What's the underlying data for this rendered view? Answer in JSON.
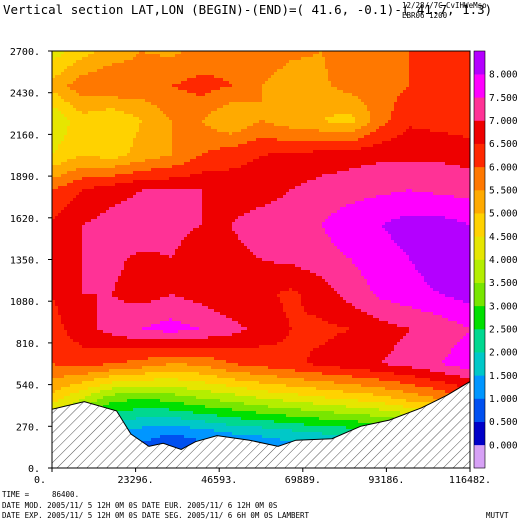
{
  "header": {
    "title": "Vertical section LAT,LON (BEGIN)-(END)=( 41.6, -0.1)-( 41.7,  1.3)",
    "stamp_line1": "12/28//7C",
    "stamp_line2": "CvIHWeMso",
    "stamp_line3": "EBR06 1200"
  },
  "footer": {
    "time_label": "TIME =",
    "time_value": "86400.",
    "line1": "DATE MOD. 2005/11/ 5   12H 0M 0S     DATE EUR. 2005/11/ 6   12H 0M 0S",
    "line2": "DATE EXP.  2005/11/ 5   12H 0M 0S     DATE SEG. 2005/11/ 6   6H 0M 0S     LAMBERT",
    "corner": "MUTVT"
  },
  "chart_data": {
    "type": "heatmap",
    "title": "",
    "xlabel": "",
    "ylabel": "",
    "xlim": [
      0,
      116482
    ],
    "ylim": [
      0,
      2700
    ],
    "x_ticks": [
      "0.",
      "23296.",
      "46593.",
      "69889.",
      "93186.",
      "116482."
    ],
    "y_ticks": [
      "0.",
      "270.",
      "540.",
      "810.",
      "1080.",
      "1350.",
      "1620.",
      "1890.",
      "2160.",
      "2430.",
      "2700."
    ],
    "colorbar": {
      "levels": [
        "0.000",
        "0.500",
        "1.000",
        "1.500",
        "2.000",
        "2.500",
        "3.000",
        "3.500",
        "4.000",
        "4.500",
        "5.000",
        "5.500",
        "6.000",
        "6.500",
        "7.000",
        "7.500",
        "8.000"
      ],
      "colors": [
        "#d7a1f6",
        "#0000c8",
        "#0050f0",
        "#0096ff",
        "#00c8c8",
        "#00d890",
        "#00e000",
        "#78e600",
        "#b4ee00",
        "#e6e600",
        "#ffd200",
        "#ffaa00",
        "#ff7800",
        "#ff2800",
        "#ee0000",
        "#ff3296",
        "#ff00ff",
        "#b400ff"
      ],
      "range": [
        -0.5,
        8.5
      ]
    },
    "terrain": [
      [
        0,
        380
      ],
      [
        9000,
        430
      ],
      [
        18000,
        370
      ],
      [
        22000,
        220
      ],
      [
        27000,
        140
      ],
      [
        31000,
        160
      ],
      [
        36000,
        120
      ],
      [
        40000,
        170
      ],
      [
        46000,
        210
      ],
      [
        55000,
        180
      ],
      [
        63000,
        140
      ],
      [
        68000,
        180
      ],
      [
        78000,
        190
      ],
      [
        86000,
        270
      ],
      [
        94000,
        310
      ],
      [
        103000,
        390
      ],
      [
        110000,
        470
      ],
      [
        116482,
        560
      ]
    ],
    "grid_x": [
      0,
      8320,
      16640,
      24960,
      33280,
      41600,
      49920,
      58240,
      66560,
      74880,
      83200,
      91520,
      99840,
      108160,
      116482
    ],
    "grid_y": [
      0,
      225,
      450,
      675,
      900,
      1125,
      1350,
      1575,
      1800,
      2025,
      2250,
      2475,
      2700
    ],
    "values": [
      [
        2.0,
        0.5,
        0.8,
        0.5,
        0.2,
        0.3,
        0.5,
        0.4,
        0.5,
        0.8,
        1.0,
        1.2,
        1.0,
        1.3,
        1.5
      ],
      [
        2.8,
        2.2,
        1.5,
        1.2,
        1.0,
        1.2,
        1.5,
        1.6,
        1.8,
        2.0,
        2.1,
        2.3,
        2.5,
        2.5,
        2.8
      ],
      [
        4.8,
        4.0,
        3.2,
        3.0,
        3.2,
        3.5,
        3.7,
        4.0,
        4.2,
        4.4,
        4.6,
        4.8,
        5.2,
        5.5,
        6.0
      ],
      [
        6.0,
        6.2,
        6.0,
        5.8,
        5.5,
        5.6,
        6.0,
        6.2,
        6.4,
        6.6,
        6.8,
        7.0,
        7.2,
        7.5,
        7.8
      ],
      [
        6.3,
        6.8,
        7.2,
        7.5,
        7.7,
        7.5,
        7.2,
        6.8,
        6.5,
        6.4,
        6.5,
        6.8,
        7.0,
        7.2,
        7.5
      ],
      [
        6.5,
        7.0,
        7.0,
        6.8,
        7.0,
        6.8,
        6.5,
        6.6,
        6.4,
        6.7,
        7.2,
        7.6,
        7.8,
        8.0,
        8.2
      ],
      [
        6.8,
        7.0,
        7.1,
        6.9,
        7.0,
        6.8,
        6.9,
        7.0,
        7.1,
        7.3,
        7.5,
        7.8,
        8.0,
        8.3,
        8.5
      ],
      [
        6.6,
        7.0,
        7.2,
        7.3,
        7.1,
        7.0,
        7.0,
        7.2,
        7.3,
        7.5,
        7.8,
        8.0,
        8.2,
        8.2,
        8.0
      ],
      [
        6.0,
        6.5,
        6.8,
        7.0,
        7.0,
        7.0,
        6.8,
        6.8,
        7.0,
        7.2,
        7.3,
        7.4,
        7.5,
        7.4,
        7.3
      ],
      [
        4.5,
        5.0,
        4.8,
        5.2,
        5.5,
        6.0,
        6.3,
        6.5,
        6.6,
        6.7,
        6.8,
        6.9,
        6.9,
        6.9,
        6.8
      ],
      [
        4.0,
        4.8,
        4.5,
        5.0,
        5.5,
        5.5,
        5.0,
        5.5,
        5.2,
        5.0,
        4.8,
        5.8,
        6.4,
        6.3,
        6.2
      ],
      [
        5.2,
        5.8,
        6.0,
        5.8,
        6.0,
        6.2,
        6.0,
        5.5,
        5.2,
        5.4,
        5.7,
        5.8,
        6.0,
        6.2,
        6.4
      ],
      [
        4.2,
        4.8,
        5.2,
        5.5,
        5.4,
        5.6,
        5.8,
        5.9,
        5.6,
        5.5,
        5.7,
        5.9,
        6.0,
        6.2,
        6.4
      ]
    ]
  }
}
